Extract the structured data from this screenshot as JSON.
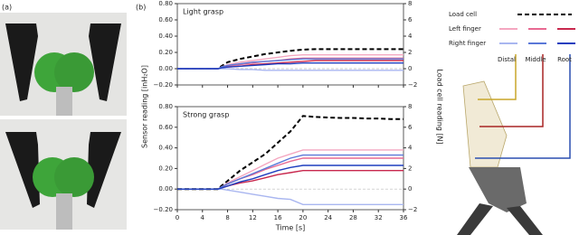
{
  "panel_labels": [
    "(a)",
    "(b)"
  ],
  "legend": {
    "rows": [
      {
        "name": "Load cell",
        "colors": [
          "#000000"
        ],
        "dashed": true
      },
      {
        "name": "Left finger",
        "colors": [
          "#f4a7c0",
          "#e86a92",
          "#c8284e"
        ]
      },
      {
        "name": "Right finger",
        "colors": [
          "#a9b6f0",
          "#5a78d8",
          "#1f3fbf"
        ]
      }
    ],
    "columns": [
      "Distal",
      "Middle",
      "Root"
    ]
  },
  "chart_data": [
    {
      "type": "line",
      "title": "Light grasp",
      "x": [
        0,
        2,
        4,
        6,
        6.5,
        7,
        8,
        10,
        12,
        14,
        16,
        18,
        20,
        22,
        24,
        26,
        28,
        30,
        32,
        34,
        36
      ],
      "xlim": [
        0,
        36
      ],
      "xticks": [
        0,
        4,
        8,
        12,
        16,
        20,
        24,
        28,
        32,
        36
      ],
      "show_xtick_labels": false,
      "ylim": [
        -0.2,
        0.8
      ],
      "yticks": [
        {
          "value": -0.2,
          "label": "−0.20"
        },
        {
          "value": 0,
          "label": "0.00"
        },
        {
          "value": 0.2,
          "label": "0.20"
        },
        {
          "value": 0.4,
          "label": "0.40"
        },
        {
          "value": 0.6,
          "label": "0.60"
        },
        {
          "value": 0.8,
          "label": "0.80"
        }
      ],
      "y2lim": [
        -2,
        8
      ],
      "y2ticks": [
        {
          "value": -2,
          "label": "−2"
        },
        0,
        2,
        4,
        6,
        8
      ],
      "zero_line": true,
      "series": [
        {
          "color": "#000000",
          "dashed": true,
          "axis": "y2",
          "values": [
            0,
            0,
            0,
            0,
            0,
            0.3,
            0.8,
            1.2,
            1.5,
            1.8,
            2.0,
            2.2,
            2.35,
            2.4,
            2.4,
            2.4,
            2.4,
            2.4,
            2.4,
            2.4,
            2.4
          ]
        },
        {
          "color": "#f4a7c0",
          "values": [
            0,
            0,
            0,
            0,
            0,
            0.02,
            0.05,
            0.08,
            0.1,
            0.12,
            0.14,
            0.16,
            0.17,
            0.17,
            0.17,
            0.17,
            0.17,
            0.17,
            0.17,
            0.17,
            0.17
          ]
        },
        {
          "color": "#e86a92",
          "values": [
            0,
            0,
            0,
            0,
            0,
            0.01,
            0.03,
            0.05,
            0.07,
            0.09,
            0.1,
            0.12,
            0.13,
            0.13,
            0.13,
            0.13,
            0.13,
            0.13,
            0.13,
            0.13,
            0.13
          ]
        },
        {
          "color": "#c8284e",
          "values": [
            0,
            0,
            0,
            0,
            0,
            0.01,
            0.02,
            0.03,
            0.05,
            0.06,
            0.07,
            0.08,
            0.09,
            0.1,
            0.1,
            0.1,
            0.1,
            0.1,
            0.1,
            0.1,
            0.1
          ]
        },
        {
          "color": "#a9b6f0",
          "values": [
            0,
            0,
            0,
            0,
            0,
            0,
            0,
            -0.01,
            -0.01,
            -0.02,
            -0.02,
            -0.02,
            -0.02,
            -0.02,
            -0.02,
            -0.02,
            -0.02,
            -0.02,
            -0.02,
            -0.02,
            -0.02
          ]
        },
        {
          "color": "#5a78d8",
          "values": [
            0,
            0,
            0,
            0,
            0,
            0.02,
            0.04,
            0.06,
            0.08,
            0.09,
            0.1,
            0.11,
            0.12,
            0.12,
            0.12,
            0.12,
            0.12,
            0.12,
            0.12,
            0.12,
            0.12
          ]
        },
        {
          "color": "#1f3fbf",
          "values": [
            0,
            0,
            0,
            0,
            0,
            0.01,
            0.02,
            0.03,
            0.04,
            0.05,
            0.06,
            0.06,
            0.07,
            0.07,
            0.07,
            0.07,
            0.07,
            0.07,
            0.07,
            0.07,
            0.07
          ]
        }
      ]
    },
    {
      "type": "line",
      "title": "Strong grasp",
      "xlabel": "Time [s]",
      "ylabel": "Sensor reading [inH₂O]",
      "y2label": "Load cell reading [N]",
      "x": [
        0,
        2,
        4,
        6,
        6.5,
        7,
        8,
        10,
        12,
        14,
        16,
        18,
        20,
        22,
        24,
        26,
        28,
        30,
        32,
        34,
        36
      ],
      "xlim": [
        0,
        36
      ],
      "xticks": [
        0,
        4,
        8,
        12,
        16,
        20,
        24,
        28,
        32,
        36
      ],
      "show_xtick_labels": true,
      "ylim": [
        -0.2,
        0.8
      ],
      "yticks": [
        {
          "value": -0.2,
          "label": "−0.20"
        },
        {
          "value": 0,
          "label": "0.00"
        },
        {
          "value": 0.2,
          "label": "0.20"
        },
        {
          "value": 0.4,
          "label": "0.40"
        },
        {
          "value": 0.6,
          "label": "0.60"
        },
        {
          "value": 0.8,
          "label": "0.80"
        }
      ],
      "y2lim": [
        -2,
        8
      ],
      "y2ticks": [
        {
          "value": -2,
          "label": "−2"
        },
        0,
        2,
        4,
        6,
        8
      ],
      "zero_line": true,
      "series": [
        {
          "color": "#000000",
          "dashed": true,
          "axis": "y2",
          "values": [
            0,
            0,
            0,
            0,
            0,
            0.3,
            0.8,
            1.8,
            2.6,
            3.4,
            4.5,
            5.6,
            7.1,
            7.0,
            6.95,
            6.9,
            6.9,
            6.85,
            6.85,
            6.8,
            6.8
          ]
        },
        {
          "color": "#f4a7c0",
          "values": [
            0,
            0,
            0,
            0,
            0,
            0.02,
            0.06,
            0.12,
            0.18,
            0.24,
            0.3,
            0.34,
            0.38,
            0.38,
            0.38,
            0.38,
            0.38,
            0.38,
            0.38,
            0.38,
            0.38
          ]
        },
        {
          "color": "#e86a92",
          "values": [
            0,
            0,
            0,
            0,
            0,
            0.02,
            0.05,
            0.1,
            0.14,
            0.19,
            0.23,
            0.27,
            0.3,
            0.3,
            0.3,
            0.3,
            0.3,
            0.3,
            0.3,
            0.3,
            0.3
          ]
        },
        {
          "color": "#c8284e",
          "values": [
            0,
            0,
            0,
            0,
            0,
            0.01,
            0.03,
            0.06,
            0.08,
            0.11,
            0.14,
            0.16,
            0.18,
            0.18,
            0.18,
            0.18,
            0.18,
            0.18,
            0.18,
            0.18,
            0.18
          ]
        },
        {
          "color": "#a9b6f0",
          "values": [
            0,
            0,
            0,
            0,
            0,
            0,
            -0.01,
            -0.03,
            -0.05,
            -0.07,
            -0.09,
            -0.1,
            -0.15,
            -0.15,
            -0.15,
            -0.15,
            -0.15,
            -0.15,
            -0.15,
            -0.15,
            -0.15
          ]
        },
        {
          "color": "#5a78d8",
          "values": [
            0,
            0,
            0,
            0,
            0,
            0.02,
            0.05,
            0.1,
            0.15,
            0.2,
            0.25,
            0.3,
            0.33,
            0.33,
            0.33,
            0.33,
            0.33,
            0.33,
            0.33,
            0.33,
            0.33
          ]
        },
        {
          "color": "#1f3fbf",
          "values": [
            0,
            0,
            0,
            0,
            0,
            0.01,
            0.03,
            0.07,
            0.1,
            0.14,
            0.18,
            0.21,
            0.23,
            0.23,
            0.23,
            0.23,
            0.23,
            0.23,
            0.23,
            0.23,
            0.23
          ]
        }
      ]
    }
  ]
}
